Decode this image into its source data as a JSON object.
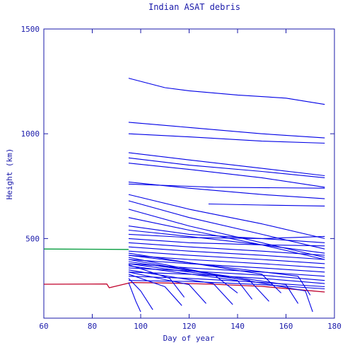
{
  "chart_data": {
    "type": "line",
    "title": "Indian ASAT debris",
    "xlabel": "Day of year",
    "ylabel": "Height (km)",
    "xlim": [
      60,
      180
    ],
    "ylim": [
      120,
      1500
    ],
    "x_ticks": [
      60,
      80,
      100,
      120,
      140,
      160,
      180
    ],
    "y_ticks": [
      500,
      1000,
      1500
    ],
    "grid": false,
    "colors": {
      "axis": "#1a1aaa",
      "debris": "#0000e6",
      "iss": "#c0002a",
      "green": "#009a3a"
    },
    "series": [
      {
        "color_key": "green",
        "x": [
          60,
          95
        ],
        "y": [
          450,
          448
        ]
      },
      {
        "color_key": "iss",
        "x": [
          60,
          86,
          87,
          96,
          110,
          130,
          150,
          165,
          176
        ],
        "y": [
          282,
          283,
          265,
          290,
          288,
          282,
          272,
          256,
          245
        ]
      },
      {
        "color_key": "debris",
        "x": [
          95,
          110,
          120,
          140,
          160,
          176
        ],
        "y": [
          1265,
          1220,
          1205,
          1185,
          1170,
          1140
        ]
      },
      {
        "color_key": "debris",
        "x": [
          95,
          120,
          150,
          176
        ],
        "y": [
          1055,
          1030,
          1000,
          980
        ]
      },
      {
        "color_key": "debris",
        "x": [
          95,
          120,
          150,
          176
        ],
        "y": [
          1000,
          985,
          965,
          955
        ]
      },
      {
        "color_key": "debris",
        "x": [
          95,
          120,
          150,
          176
        ],
        "y": [
          910,
          875,
          835,
          800
        ]
      },
      {
        "color_key": "debris",
        "x": [
          95,
          120,
          150,
          176
        ],
        "y": [
          885,
          850,
          820,
          790
        ]
      },
      {
        "color_key": "debris",
        "x": [
          95,
          120,
          150,
          176
        ],
        "y": [
          860,
          830,
          790,
          745
        ]
      },
      {
        "color_key": "debris",
        "x": [
          95,
          130,
          176
        ],
        "y": [
          760,
          745,
          740
        ]
      },
      {
        "color_key": "debris",
        "x": [
          95,
          120,
          150,
          176
        ],
        "y": [
          770,
          740,
          710,
          690
        ]
      },
      {
        "color_key": "debris",
        "x": [
          128,
          150,
          176
        ],
        "y": [
          665,
          660,
          655
        ]
      },
      {
        "color_key": "debris",
        "x": [
          95,
          120,
          150,
          176
        ],
        "y": [
          710,
          640,
          570,
          500
        ]
      },
      {
        "color_key": "debris",
        "x": [
          95,
          120,
          150,
          176
        ],
        "y": [
          680,
          600,
          520,
          450
        ]
      },
      {
        "color_key": "debris",
        "x": [
          95,
          120,
          150,
          176
        ],
        "y": [
          640,
          560,
          480,
          410
        ]
      },
      {
        "color_key": "debris",
        "x": [
          95,
          120,
          150,
          176
        ],
        "y": [
          600,
          540,
          470,
          400
        ]
      },
      {
        "color_key": "debris",
        "x": [
          95,
          120,
          150,
          176
        ],
        "y": [
          560,
          520,
          500,
          480
        ]
      },
      {
        "color_key": "debris",
        "x": [
          95,
          120,
          150,
          176
        ],
        "y": [
          540,
          510,
          470,
          430
        ]
      },
      {
        "color_key": "debris",
        "x": [
          95,
          120,
          150,
          176
        ],
        "y": [
          520,
          505,
          500,
          510
        ]
      },
      {
        "color_key": "debris",
        "x": [
          95,
          120,
          150,
          176
        ],
        "y": [
          500,
          480,
          470,
          465
        ]
      },
      {
        "color_key": "debris",
        "x": [
          95,
          120,
          150,
          176
        ],
        "y": [
          480,
          460,
          440,
          420
        ]
      },
      {
        "color_key": "debris",
        "x": [
          95,
          120,
          150,
          176
        ],
        "y": [
          460,
          440,
          420,
          400
        ]
      },
      {
        "color_key": "debris",
        "x": [
          95,
          120,
          150,
          176
        ],
        "y": [
          440,
          420,
          400,
          380
        ]
      },
      {
        "color_key": "debris",
        "x": [
          95,
          120,
          150,
          176
        ],
        "y": [
          420,
          400,
          380,
          360
        ]
      },
      {
        "color_key": "debris",
        "x": [
          95,
          120,
          150,
          176
        ],
        "y": [
          400,
          380,
          360,
          340
        ]
      },
      {
        "color_key": "debris",
        "x": [
          95,
          120,
          150,
          176
        ],
        "y": [
          380,
          360,
          340,
          320
        ]
      },
      {
        "color_key": "debris",
        "x": [
          95,
          120,
          150,
          176
        ],
        "y": [
          360,
          345,
          325,
          300
        ]
      },
      {
        "color_key": "debris",
        "x": [
          95,
          120,
          150,
          176
        ],
        "y": [
          340,
          330,
          310,
          285
        ]
      },
      {
        "color_key": "debris",
        "x": [
          95,
          120,
          150,
          176
        ],
        "y": [
          320,
          310,
          290,
          270
        ]
      },
      {
        "color_key": "debris",
        "x": [
          95,
          120,
          150,
          176
        ],
        "y": [
          300,
          295,
          280,
          260
        ]
      },
      {
        "color_key": "debris",
        "x": [
          95,
          100,
          105
        ],
        "y": [
          310,
          250,
          160
        ]
      },
      {
        "color_key": "debris",
        "x": [
          95,
          98,
          100
        ],
        "y": [
          290,
          200,
          150
        ]
      },
      {
        "color_key": "debris",
        "x": [
          95,
          110,
          117
        ],
        "y": [
          330,
          270,
          180
        ]
      },
      {
        "color_key": "debris",
        "x": [
          95,
          120,
          127
        ],
        "y": [
          340,
          280,
          190
        ]
      },
      {
        "color_key": "debris",
        "x": [
          95,
          130,
          138
        ],
        "y": [
          350,
          285,
          185
        ]
      },
      {
        "color_key": "debris",
        "x": [
          95,
          140,
          146
        ],
        "y": [
          370,
          300,
          210
        ]
      },
      {
        "color_key": "debris",
        "x": [
          95,
          145,
          153
        ],
        "y": [
          380,
          300,
          200
        ]
      },
      {
        "color_key": "debris",
        "x": [
          95,
          160,
          165
        ],
        "y": [
          390,
          280,
          190
        ]
      },
      {
        "color_key": "debris",
        "x": [
          95,
          168,
          171
        ],
        "y": [
          400,
          250,
          150
        ]
      },
      {
        "color_key": "debris",
        "x": [
          95,
          165,
          170
        ],
        "y": [
          420,
          320,
          230
        ]
      },
      {
        "color_key": "debris",
        "x": [
          95,
          150,
          158
        ],
        "y": [
          430,
          330,
          240
        ]
      },
      {
        "color_key": "debris",
        "x": [
          95,
          130,
          140
        ],
        "y": [
          410,
          330,
          240
        ]
      },
      {
        "color_key": "debris",
        "x": [
          95,
          112,
          118
        ],
        "y": [
          375,
          310,
          220
        ]
      }
    ]
  }
}
